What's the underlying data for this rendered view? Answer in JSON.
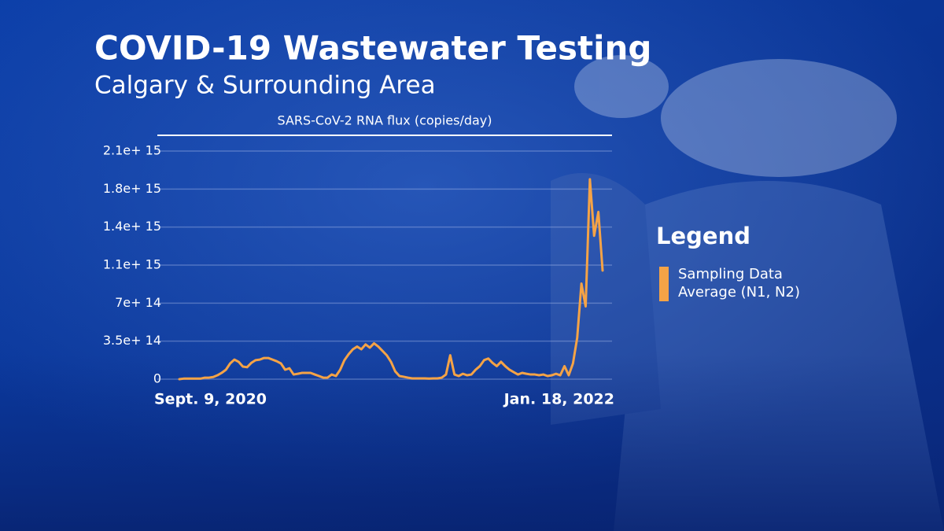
{
  "header": {
    "title": "COVID-19 Wastewater Testing",
    "subtitle": "Calgary & Surrounding Area"
  },
  "chart_data": {
    "type": "line",
    "y_label": "SARS-CoV-2 RNA flux (copies/day)",
    "categories": [
      "Sept. 9, 2020",
      null,
      null,
      null,
      null,
      null,
      null,
      null,
      null,
      null,
      null,
      null,
      null,
      null,
      null,
      null,
      null,
      null,
      null,
      null,
      null,
      null,
      null,
      null,
      null,
      null,
      null,
      null,
      null,
      null,
      null,
      null,
      null,
      null,
      null,
      null,
      null,
      null,
      null,
      null,
      null,
      null,
      null,
      null,
      null,
      null,
      null,
      null,
      null,
      null,
      null,
      null,
      null,
      null,
      null,
      null,
      null,
      null,
      null,
      null,
      null,
      null,
      null,
      null,
      null,
      null,
      null,
      null,
      null,
      null,
      null,
      null,
      null,
      null,
      null,
      null,
      null,
      null,
      null,
      null,
      null,
      null,
      null,
      null,
      null,
      null,
      null,
      null,
      null,
      null,
      null,
      null,
      null,
      null,
      null,
      null,
      null,
      null,
      null,
      null,
      "Jan. 18, 2022"
    ],
    "series": [
      {
        "name": "Sampling Data Average (N1, N2)",
        "color": "#f5a346",
        "values": [
          0,
          5000000000000.0,
          5000000000000.0,
          5000000000000.0,
          5000000000000.0,
          5000000000000.0,
          14000000000000.0,
          14000000000000.0,
          20000000000000.0,
          36000000000000.0,
          58000000000000.0,
          87000000000000.0,
          145000000000000.0,
          180000000000000.0,
          160000000000000.0,
          116000000000000.0,
          110000000000000.0,
          150000000000000.0,
          175000000000000.0,
          180000000000000.0,
          195000000000000.0,
          195000000000000.0,
          180000000000000.0,
          165000000000000.0,
          145000000000000.0,
          87000000000000.0,
          100000000000000.0,
          43000000000000.0,
          50000000000000.0,
          58000000000000.0,
          58000000000000.0,
          58000000000000.0,
          43000000000000.0,
          29000000000000.0,
          14000000000000.0,
          14000000000000.0,
          43000000000000.0,
          29000000000000.0,
          87000000000000.0,
          175000000000000.0,
          230000000000000.0,
          275000000000000.0,
          300000000000000.0,
          275000000000000.0,
          320000000000000.0,
          290000000000000.0,
          330000000000000.0,
          300000000000000.0,
          260000000000000.0,
          220000000000000.0,
          160000000000000.0,
          72000000000000.0,
          29000000000000.0,
          22000000000000.0,
          14000000000000.0,
          7000000000000.0,
          7000000000000.0,
          7000000000000.0,
          7000000000000.0,
          5000000000000.0,
          7000000000000.0,
          7000000000000.0,
          14000000000000.0,
          43000000000000.0,
          220000000000000.0,
          43000000000000.0,
          29000000000000.0,
          50000000000000.0,
          36000000000000.0,
          43000000000000.0,
          87000000000000.0,
          120000000000000.0,
          175000000000000.0,
          190000000000000.0,
          150000000000000.0,
          120000000000000.0,
          160000000000000.0,
          120000000000000.0,
          87000000000000.0,
          65000000000000.0,
          43000000000000.0,
          58000000000000.0,
          50000000000000.0,
          43000000000000.0,
          43000000000000.0,
          36000000000000.0,
          43000000000000.0,
          29000000000000.0,
          36000000000000.0,
          50000000000000.0,
          36000000000000.0,
          120000000000000.0,
          36000000000000.0,
          145000000000000.0,
          380000000000000.0,
          880000000000000.0,
          670000000000000.0,
          1840000000000000.0,
          1320000000000000.0,
          1540000000000000.0,
          1000000000000000.0
        ]
      }
    ],
    "ylim": [
      0,
      2100000000000000.0
    ],
    "yticks": [
      0,
      {
        "value": 350000000000000.0,
        "label": "3.5e+ 14"
      },
      {
        "value": 700000000000000.0,
        "label": "7e+ 14"
      },
      {
        "value": 1050000000000000.0,
        "label": "1.1e+ 15"
      },
      {
        "value": 1400000000000000.0,
        "label": "1.4e+ 15"
      },
      {
        "value": 1750000000000000.0,
        "label": "1.8e+ 15"
      },
      {
        "value": 2100000000000000.0,
        "label": "2.1e+ 15"
      }
    ],
    "grid": true,
    "legend": {
      "title": "Legend",
      "position": "right"
    }
  }
}
